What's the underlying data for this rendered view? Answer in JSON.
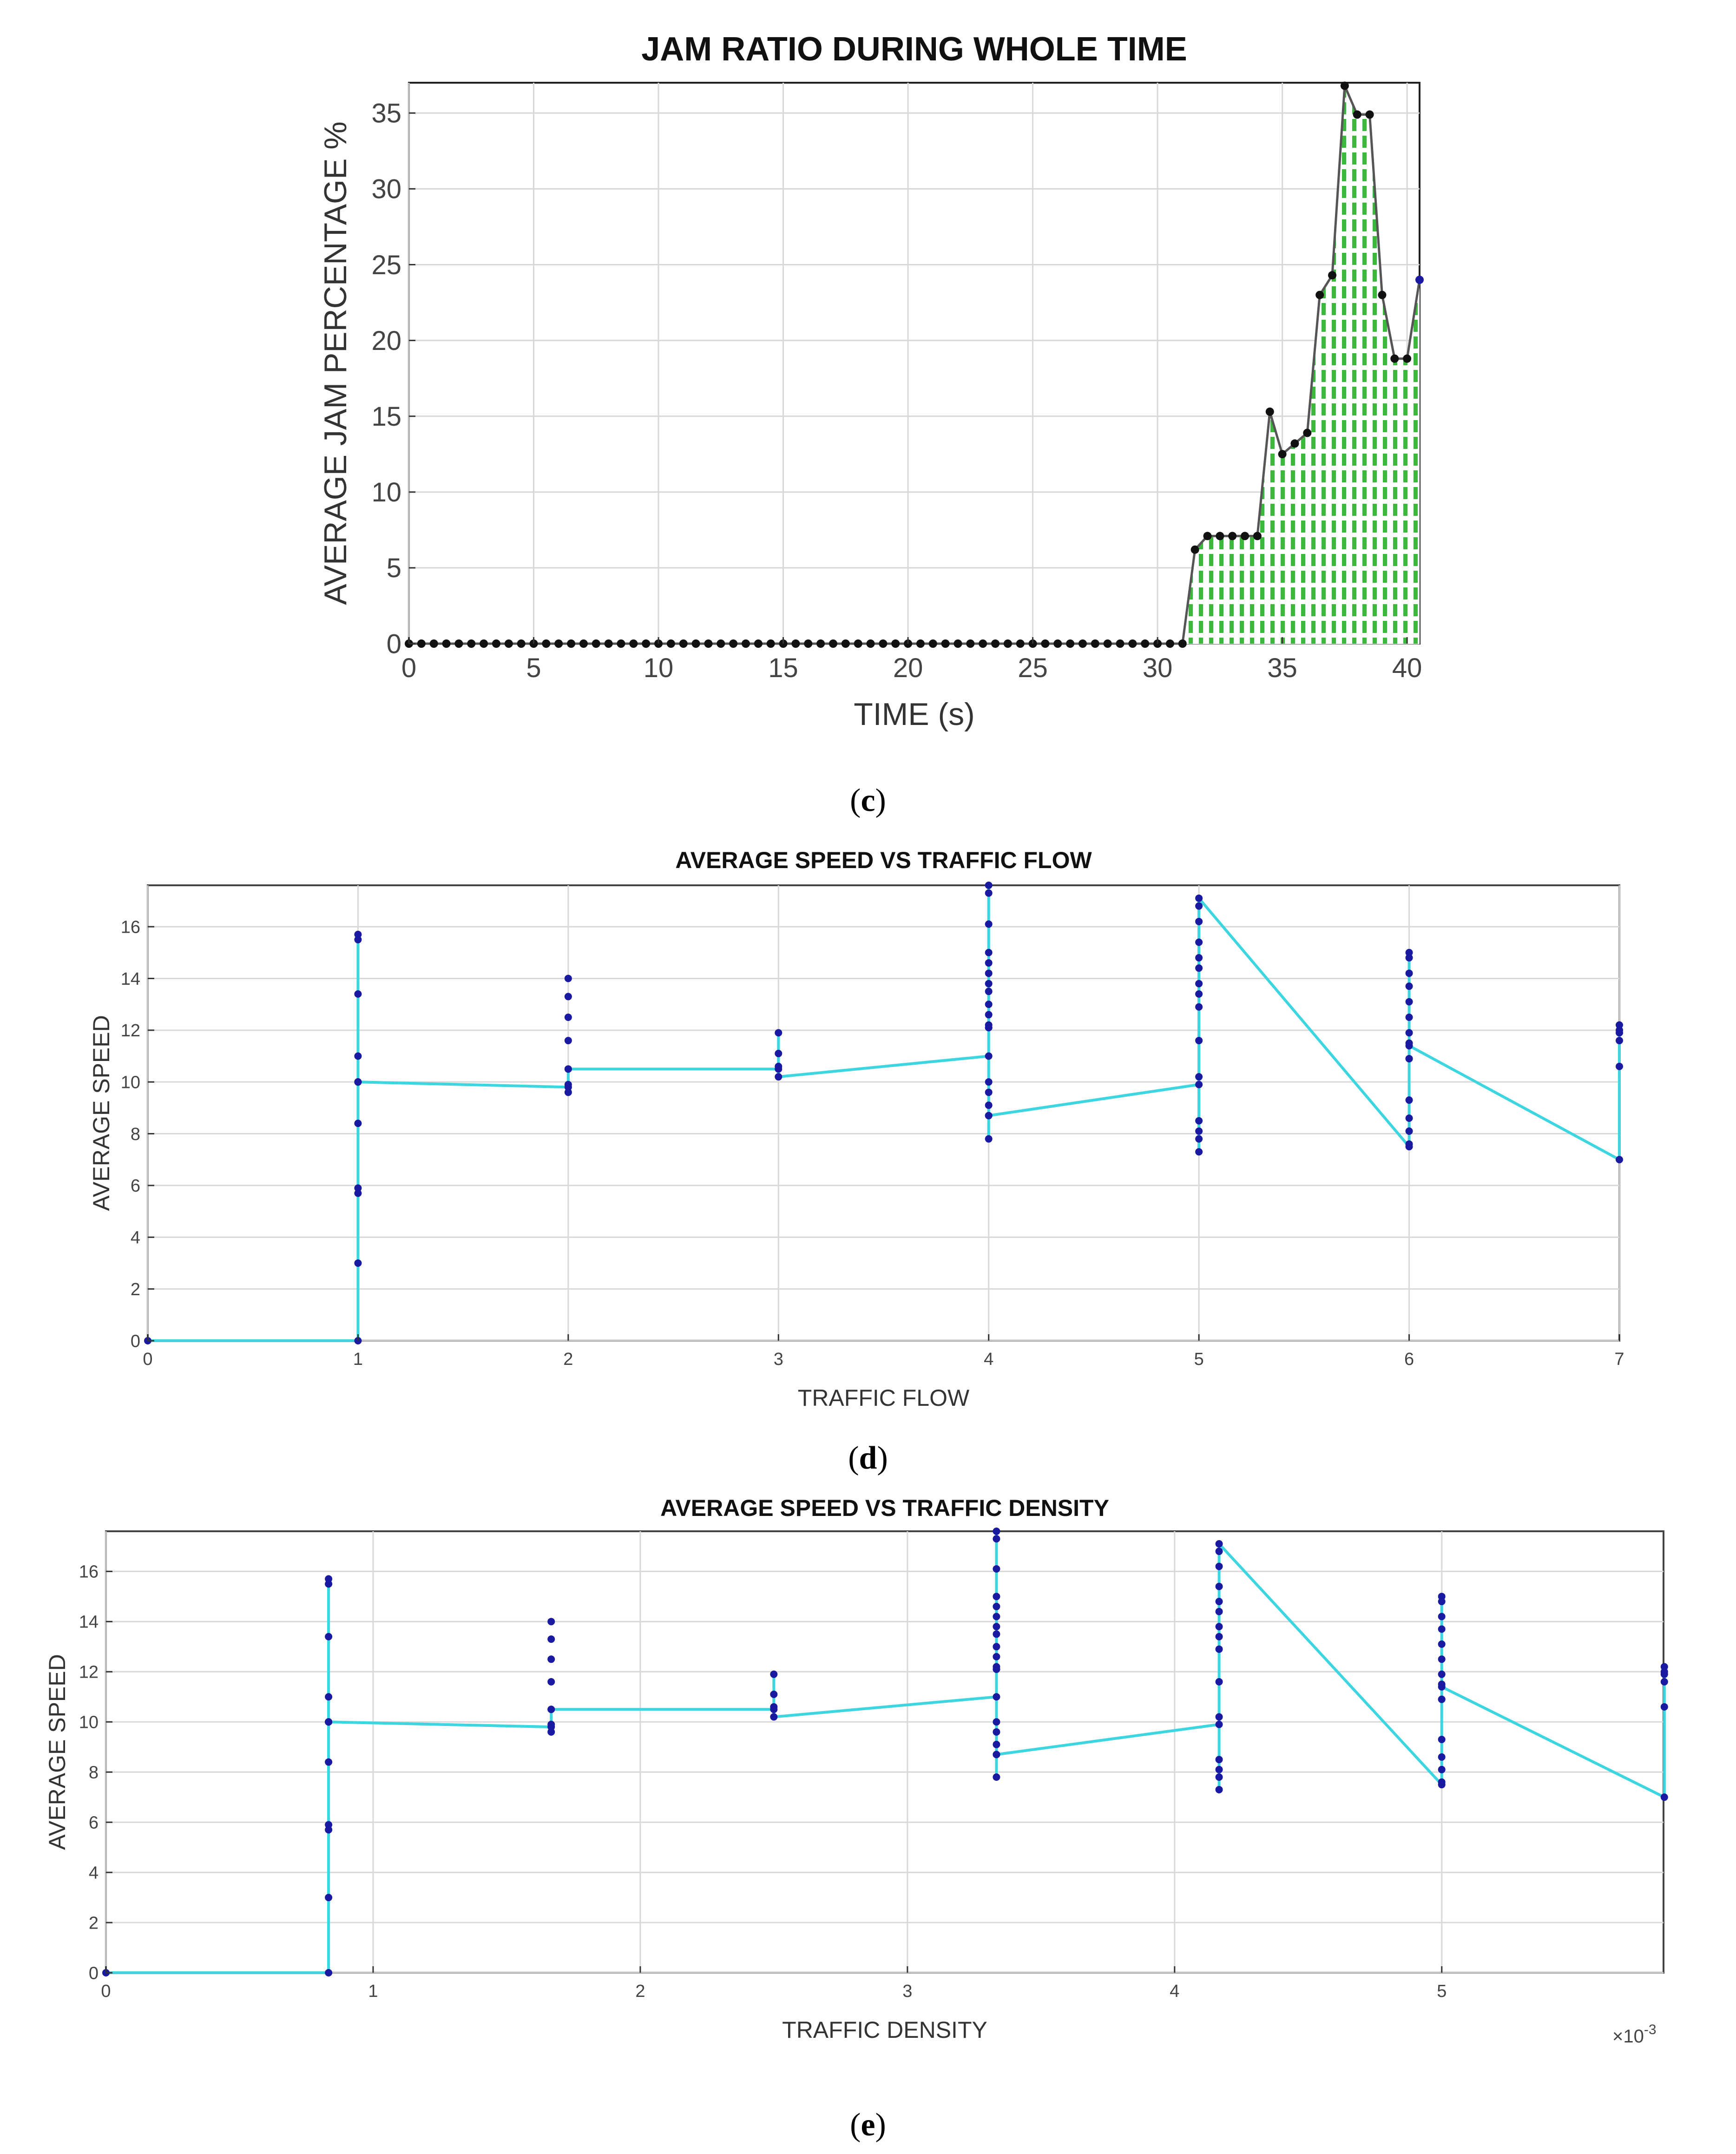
{
  "panels": [
    {
      "id": "c",
      "caption_letter": "c",
      "chart_data": {
        "type": "area",
        "title": "JAM RATIO DURING WHOLE TIME",
        "xlabel": "TIME (s)",
        "ylabel": "AVERAGE JAM PERCENTAGE %",
        "xlim": [
          0,
          40.5
        ],
        "ylim": [
          0,
          37
        ],
        "xticks": [
          0,
          5,
          10,
          15,
          20,
          25,
          30,
          35,
          40
        ],
        "yticks": [
          0,
          5,
          10,
          15,
          20,
          25,
          30,
          35
        ],
        "grid": true,
        "fill_color": "#3cb83c",
        "fill_style": "vertical-dashes",
        "line_color": "#555555",
        "marker_color": "#111111",
        "x": [
          0,
          0.5,
          1,
          1.5,
          2,
          2.5,
          3,
          3.5,
          4,
          4.5,
          5,
          5.5,
          6,
          6.5,
          7,
          7.5,
          8,
          8.5,
          9,
          9.5,
          10,
          10.5,
          11,
          11.5,
          12,
          12.5,
          13,
          13.5,
          14,
          14.5,
          15,
          15.5,
          16,
          16.5,
          17,
          17.5,
          18,
          18.5,
          19,
          19.5,
          20,
          20.5,
          21,
          21.5,
          22,
          22.5,
          23,
          23.5,
          24,
          24.5,
          25,
          25.5,
          26,
          26.5,
          27,
          27.5,
          28,
          28.5,
          29,
          29.5,
          30,
          30.5,
          31,
          31.5,
          32,
          32.5,
          33,
          33.5,
          34,
          34.5,
          35,
          35.5,
          36,
          36.5,
          37,
          37.5,
          38,
          38.5,
          39,
          39.5,
          40,
          40.5
        ],
        "y": [
          0,
          0,
          0,
          0,
          0,
          0,
          0,
          0,
          0,
          0,
          0,
          0,
          0,
          0,
          0,
          0,
          0,
          0,
          0,
          0,
          0,
          0,
          0,
          0,
          0,
          0,
          0,
          0,
          0,
          0,
          0,
          0,
          0,
          0,
          0,
          0,
          0,
          0,
          0,
          0,
          0,
          0,
          0,
          0,
          0,
          0,
          0,
          0,
          0,
          0,
          0,
          0,
          0,
          0,
          0,
          0,
          0,
          0,
          0,
          0,
          0,
          0,
          0,
          6.2,
          7.1,
          7.1,
          7.1,
          7.1,
          7.1,
          15.3,
          12.5,
          13.2,
          13.9,
          23,
          24.3,
          36.8,
          34.9,
          34.9,
          23,
          18.8,
          18.8,
          24
        ]
      }
    },
    {
      "id": "d",
      "caption_letter": "d",
      "chart_data": {
        "type": "line",
        "title": "AVERAGE SPEED VS TRAFFIC FLOW",
        "xlabel": "TRAFFIC FLOW",
        "ylabel": "AVERAGE SPEED",
        "xlim": [
          0,
          7
        ],
        "ylim": [
          0,
          17.6
        ],
        "xticks": [
          0,
          1,
          2,
          3,
          4,
          5,
          6,
          7
        ],
        "yticks": [
          0,
          2,
          4,
          6,
          8,
          10,
          12,
          14,
          16
        ],
        "grid": true,
        "line_color": "#3dd6e0",
        "marker_color": "#1a1aa0",
        "x": [
          0,
          1,
          1,
          1,
          1,
          1,
          1,
          1,
          1,
          1,
          1,
          1,
          1,
          1,
          2,
          2,
          2,
          2,
          2,
          2,
          2,
          2,
          2,
          3,
          3,
          3,
          3,
          3,
          4,
          4,
          4,
          4,
          4,
          4,
          4,
          4,
          4,
          4,
          4,
          4,
          4,
          4,
          4,
          4,
          4,
          4,
          4,
          4,
          5,
          5,
          5,
          5,
          5,
          5,
          5,
          5,
          5,
          5,
          5,
          5,
          5,
          5,
          5,
          5,
          6,
          6,
          6,
          6,
          6,
          6,
          6,
          6,
          6,
          6,
          6,
          6,
          6,
          6,
          6,
          6,
          7,
          7,
          7,
          7,
          7,
          7
        ],
        "y": [
          0,
          0,
          3,
          5.7,
          5.9,
          8.4,
          10,
          11,
          13.4,
          15.5,
          15.7,
          10,
          10,
          10,
          9.8,
          9.6,
          9.9,
          10.5,
          11.6,
          12.5,
          13.3,
          14,
          10.5,
          10.5,
          11.1,
          10.6,
          11.9,
          10.2,
          11,
          7.8,
          8.7,
          9.1,
          9.6,
          10,
          12.1,
          12.6,
          13,
          13.5,
          13.8,
          14.2,
          14.6,
          15,
          16.1,
          17.3,
          17.6,
          12.2,
          12.1,
          8.7,
          9.9,
          8.1,
          7.8,
          7.3,
          8.5,
          10.2,
          11.6,
          12.9,
          13.4,
          13.8,
          14.4,
          14.8,
          15.4,
          16.2,
          16.8,
          17.1,
          7.5,
          7.6,
          8.1,
          8.6,
          9.3,
          10.9,
          11.5,
          11.9,
          12.5,
          13.1,
          13.7,
          14.2,
          14.8,
          15,
          10.9,
          11.4,
          7,
          10.6,
          11.6,
          11.9,
          12.2,
          12
        ],
        "path_order": [
          0,
          1,
          2,
          3,
          4,
          5,
          6,
          7,
          8,
          9,
          10,
          11,
          12,
          13,
          14,
          22,
          23,
          24,
          25,
          26,
          27,
          28,
          29,
          30,
          31,
          32,
          33,
          34,
          35,
          36,
          37,
          38,
          39,
          40,
          41,
          42,
          43,
          44,
          45,
          46,
          47,
          48,
          49,
          50,
          51,
          52,
          53,
          54,
          55,
          56,
          57,
          58,
          59,
          60,
          61,
          62,
          63,
          64,
          65,
          66,
          67,
          68,
          69,
          70,
          71,
          72,
          73,
          74,
          75,
          76,
          77,
          78,
          79,
          80,
          81,
          82,
          83,
          84,
          85
        ]
      }
    },
    {
      "id": "e",
      "caption_letter": "e",
      "chart_data": {
        "type": "line",
        "title": "AVERAGE SPEED VS TRAFFIC DENSITY",
        "xlabel": "TRAFFIC DENSITY",
        "ylabel": "AVERAGE SPEED",
        "x_multiplier_label": "×10",
        "x_multiplier_exponent": "-3",
        "xlim": [
          0,
          5.83
        ],
        "ylim": [
          0,
          17.6
        ],
        "xticks": [
          0,
          1,
          2,
          3,
          4,
          5
        ],
        "yticks": [
          0,
          2,
          4,
          6,
          8,
          10,
          12,
          14,
          16
        ],
        "grid": true,
        "line_color": "#3dd6e0",
        "marker_color": "#1a1aa0",
        "x_scale_from_flow": 0.8333,
        "note_shared_y": true
      }
    }
  ]
}
